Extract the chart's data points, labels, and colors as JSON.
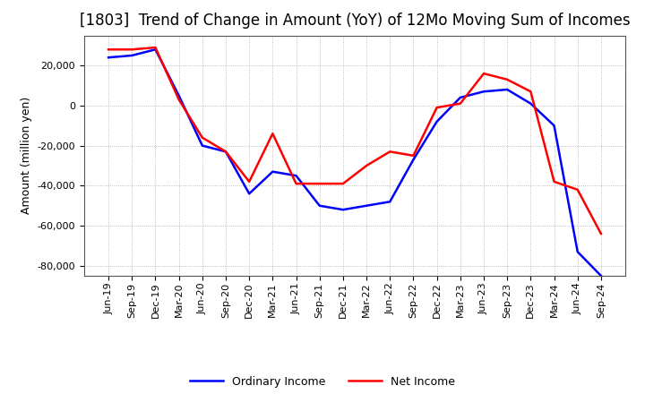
{
  "title": "[1803]  Trend of Change in Amount (YoY) of 12Mo Moving Sum of Incomes",
  "ylabel": "Amount (million yen)",
  "x_labels": [
    "Jun-19",
    "Sep-19",
    "Dec-19",
    "Mar-20",
    "Jun-20",
    "Sep-20",
    "Dec-20",
    "Mar-21",
    "Jun-21",
    "Sep-21",
    "Dec-21",
    "Mar-22",
    "Jun-22",
    "Sep-22",
    "Dec-22",
    "Mar-23",
    "Jun-23",
    "Sep-23",
    "Dec-23",
    "Mar-24",
    "Jun-24",
    "Sep-24"
  ],
  "ordinary_income": [
    24000,
    25000,
    28000,
    5000,
    -20000,
    -23000,
    -44000,
    -33000,
    -35000,
    -50000,
    -52000,
    -50000,
    -48000,
    -27000,
    -8000,
    4000,
    7000,
    8000,
    1000,
    -10000,
    -73000,
    -85000
  ],
  "net_income": [
    28000,
    28000,
    29000,
    3000,
    -16000,
    -23000,
    -38000,
    -14000,
    -39000,
    -39000,
    -39000,
    -30000,
    -23000,
    -25000,
    -1000,
    1000,
    16000,
    13000,
    7000,
    -38000,
    -42000,
    -64000
  ],
  "ordinary_income_color": "#0000ff",
  "net_income_color": "#ff0000",
  "background_color": "#ffffff",
  "grid_color": "#aaaaaa",
  "ylim": [
    -85000,
    35000
  ],
  "yticks": [
    20000,
    0,
    -20000,
    -40000,
    -60000,
    -80000
  ],
  "title_fontsize": 12,
  "axis_fontsize": 9,
  "tick_fontsize": 8
}
